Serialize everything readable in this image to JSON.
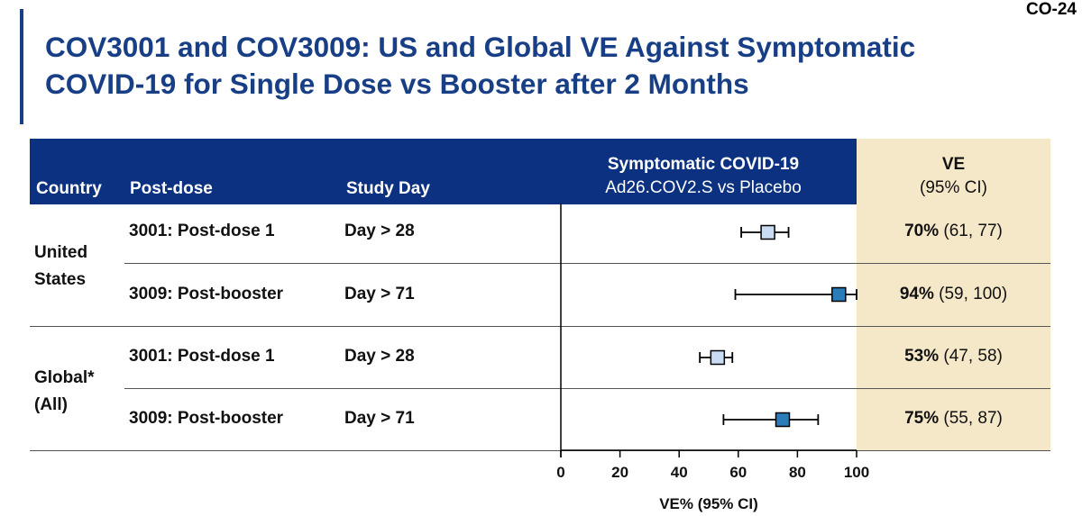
{
  "slide_number": "CO-24",
  "title_line1": "COV3001 and COV3009: US and Global VE Against Symptomatic",
  "title_line2": "COVID-19 for Single Dose vs Booster after 2 Months",
  "header": {
    "country": "Country",
    "post_dose": "Post-dose",
    "study_day": "Study Day",
    "chart_title": "Symptomatic COVID-19",
    "chart_subtitle": "Ad26.COV2.S vs Placebo",
    "ve_title": "VE",
    "ve_subtitle": "(95% CI)"
  },
  "groups": [
    {
      "name_line1": "United",
      "name_line2": "States"
    },
    {
      "name_line1": "Global*",
      "name_line2": "(All)"
    }
  ],
  "rows": [
    {
      "post_dose": "3001: Post-dose 1",
      "study_day": "Day > 28",
      "ve": "70%",
      "ci": "(61, 77)"
    },
    {
      "post_dose": "3009: Post-booster",
      "study_day": "Day > 71",
      "ve": "94%",
      "ci": "(59, 100)"
    },
    {
      "post_dose": "3001: Post-dose 1",
      "study_day": "Day > 28",
      "ve": "53%",
      "ci": "(47, 58)"
    },
    {
      "post_dose": "3009: Post-booster",
      "study_day": "Day > 71",
      "ve": "75%",
      "ci": "(55, 87)"
    }
  ],
  "chart_data": {
    "type": "forest",
    "xlabel": "VE% (95% CI)",
    "xlim": [
      0,
      100
    ],
    "ticks": [
      0,
      20,
      40,
      60,
      80,
      100
    ],
    "points": [
      {
        "estimate": 70,
        "lower": 61,
        "upper": 77,
        "color": "#c9dcf4"
      },
      {
        "estimate": 94,
        "lower": 59,
        "upper": 100,
        "color": "#2a7db8"
      },
      {
        "estimate": 53,
        "lower": 47,
        "upper": 58,
        "color": "#c9dcf4"
      },
      {
        "estimate": 75,
        "lower": 55,
        "upper": 87,
        "color": "#2a7db8"
      }
    ]
  },
  "colors": {
    "header_blue": "#0b3180",
    "title_blue": "#183f86",
    "ve_column": "#f5e8c8"
  }
}
